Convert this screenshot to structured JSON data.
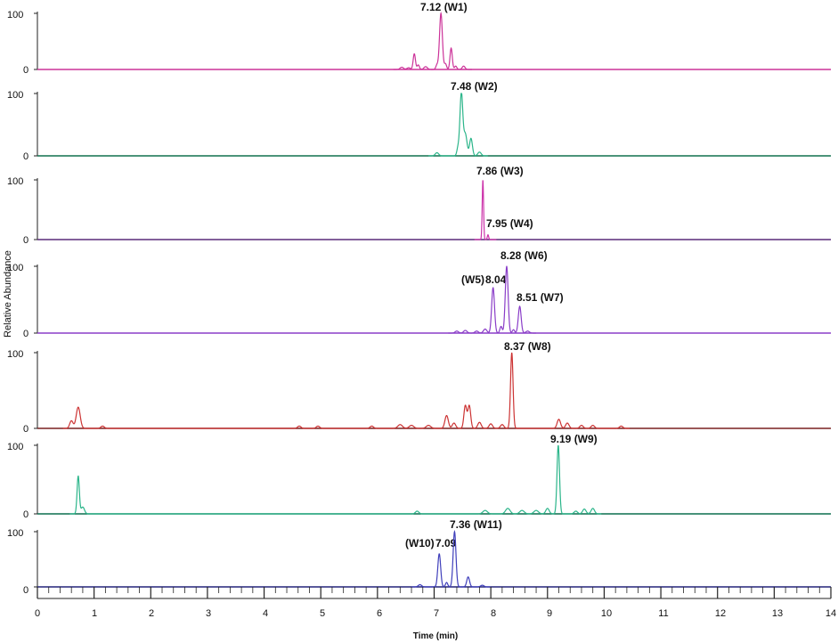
{
  "chart_data": {
    "type": "line",
    "xlabel": "Time (min)",
    "ylabel": "Relative Abundance",
    "xlim": [
      0,
      14
    ],
    "ylim": [
      0,
      100
    ],
    "x_ticks": [
      "0",
      "1",
      "2",
      "3",
      "4",
      "5",
      "6",
      "7",
      "8",
      "9",
      "10",
      "11",
      "12",
      "13",
      "14"
    ],
    "y_ticks": [
      "0",
      "100"
    ],
    "panels": [
      {
        "color": "#cc3399",
        "baseline_color": "#cc3399",
        "peak_labels": [
          "7.12 (W1)"
        ],
        "peaks": [
          {
            "x": 6.43,
            "h": 4,
            "w": 0.03
          },
          {
            "x": 6.55,
            "h": 3,
            "w": 0.03
          },
          {
            "x": 6.65,
            "h": 28,
            "w": 0.02
          },
          {
            "x": 6.72,
            "h": 8,
            "w": 0.02
          },
          {
            "x": 6.85,
            "h": 5,
            "w": 0.03
          },
          {
            "x": 7.05,
            "h": 8,
            "w": 0.02
          },
          {
            "x": 7.12,
            "h": 100,
            "w": 0.025
          },
          {
            "x": 7.2,
            "h": 10,
            "w": 0.02
          },
          {
            "x": 7.3,
            "h": 38,
            "w": 0.02
          },
          {
            "x": 7.38,
            "h": 6,
            "w": 0.02
          },
          {
            "x": 7.52,
            "h": 6,
            "w": 0.025
          }
        ]
      },
      {
        "color": "#2bb58a",
        "baseline_color": "#10704f",
        "peak_labels": [
          "7.48 (W2)"
        ],
        "peaks": [
          {
            "x": 7.05,
            "h": 5,
            "w": 0.03
          },
          {
            "x": 7.42,
            "h": 12,
            "w": 0.02
          },
          {
            "x": 7.48,
            "h": 100,
            "w": 0.025
          },
          {
            "x": 7.55,
            "h": 35,
            "w": 0.03
          },
          {
            "x": 7.65,
            "h": 28,
            "w": 0.025
          },
          {
            "x": 7.8,
            "h": 6,
            "w": 0.03
          }
        ]
      },
      {
        "color": "#cc33aa",
        "baseline_color": "#5a2a7a",
        "peak_labels": [
          "7.86 (W3)",
          "7.95 (W4)"
        ],
        "peaks": [
          {
            "x": 7.86,
            "h": 100,
            "w": 0.012
          },
          {
            "x": 7.95,
            "h": 8,
            "w": 0.012
          }
        ]
      },
      {
        "color": "#8a3dc8",
        "baseline_color": "#8a3dc8",
        "peak_labels": [
          "(W5)",
          "8.04",
          "8.28 (W6)",
          "8.51 (W7)"
        ],
        "peaks": [
          {
            "x": 7.4,
            "h": 3,
            "w": 0.03
          },
          {
            "x": 7.55,
            "h": 4,
            "w": 0.03
          },
          {
            "x": 7.75,
            "h": 3,
            "w": 0.03
          },
          {
            "x": 7.9,
            "h": 6,
            "w": 0.03
          },
          {
            "x": 8.04,
            "h": 68,
            "w": 0.025
          },
          {
            "x": 8.18,
            "h": 10,
            "w": 0.02
          },
          {
            "x": 8.28,
            "h": 100,
            "w": 0.025
          },
          {
            "x": 8.4,
            "h": 5,
            "w": 0.02
          },
          {
            "x": 8.51,
            "h": 40,
            "w": 0.025
          },
          {
            "x": 8.65,
            "h": 3,
            "w": 0.03
          }
        ]
      },
      {
        "color": "#cc3333",
        "baseline_color": "#7a2020",
        "peak_labels": [
          "8.37 (W8)"
        ],
        "peaks": [
          {
            "x": 0.6,
            "h": 10,
            "w": 0.03
          },
          {
            "x": 0.72,
            "h": 28,
            "w": 0.035
          },
          {
            "x": 1.15,
            "h": 3,
            "w": 0.03
          },
          {
            "x": 4.62,
            "h": 3,
            "w": 0.03
          },
          {
            "x": 4.95,
            "h": 3,
            "w": 0.03
          },
          {
            "x": 5.9,
            "h": 3,
            "w": 0.03
          },
          {
            "x": 6.4,
            "h": 5,
            "w": 0.04
          },
          {
            "x": 6.6,
            "h": 4,
            "w": 0.04
          },
          {
            "x": 6.9,
            "h": 4,
            "w": 0.04
          },
          {
            "x": 7.22,
            "h": 17,
            "w": 0.03
          },
          {
            "x": 7.35,
            "h": 7,
            "w": 0.03
          },
          {
            "x": 7.55,
            "h": 30,
            "w": 0.025
          },
          {
            "x": 7.62,
            "h": 30,
            "w": 0.025
          },
          {
            "x": 7.8,
            "h": 8,
            "w": 0.03
          },
          {
            "x": 8.0,
            "h": 6,
            "w": 0.03
          },
          {
            "x": 8.2,
            "h": 5,
            "w": 0.03
          },
          {
            "x": 8.37,
            "h": 100,
            "w": 0.022
          },
          {
            "x": 9.2,
            "h": 12,
            "w": 0.03
          },
          {
            "x": 9.35,
            "h": 7,
            "w": 0.03
          },
          {
            "x": 9.6,
            "h": 4,
            "w": 0.03
          },
          {
            "x": 9.8,
            "h": 4,
            "w": 0.03
          },
          {
            "x": 10.3,
            "h": 3,
            "w": 0.03
          }
        ]
      },
      {
        "color": "#2bb58a",
        "baseline_color": "#0b6e4f",
        "peak_labels": [
          "9.19 (W9)"
        ],
        "peaks": [
          {
            "x": 0.72,
            "h": 55,
            "w": 0.02
          },
          {
            "x": 0.8,
            "h": 10,
            "w": 0.03
          },
          {
            "x": 6.7,
            "h": 4,
            "w": 0.03
          },
          {
            "x": 7.9,
            "h": 5,
            "w": 0.04
          },
          {
            "x": 8.3,
            "h": 8,
            "w": 0.04
          },
          {
            "x": 8.55,
            "h": 5,
            "w": 0.04
          },
          {
            "x": 8.8,
            "h": 5,
            "w": 0.04
          },
          {
            "x": 9.0,
            "h": 8,
            "w": 0.03
          },
          {
            "x": 9.19,
            "h": 100,
            "w": 0.022
          },
          {
            "x": 9.5,
            "h": 4,
            "w": 0.03
          },
          {
            "x": 9.65,
            "h": 7,
            "w": 0.03
          },
          {
            "x": 9.8,
            "h": 8,
            "w": 0.03
          }
        ]
      },
      {
        "color": "#4040bb",
        "baseline_color": "#23237a",
        "peak_labels": [
          "(W10)",
          "7.09",
          "7.36 (W11)"
        ],
        "peaks": [
          {
            "x": 6.75,
            "h": 4,
            "w": 0.03
          },
          {
            "x": 7.09,
            "h": 60,
            "w": 0.025
          },
          {
            "x": 7.22,
            "h": 8,
            "w": 0.02
          },
          {
            "x": 7.36,
            "h": 100,
            "w": 0.025
          },
          {
            "x": 7.6,
            "h": 18,
            "w": 0.025
          },
          {
            "x": 7.85,
            "h": 3,
            "w": 0.03
          }
        ]
      }
    ]
  }
}
